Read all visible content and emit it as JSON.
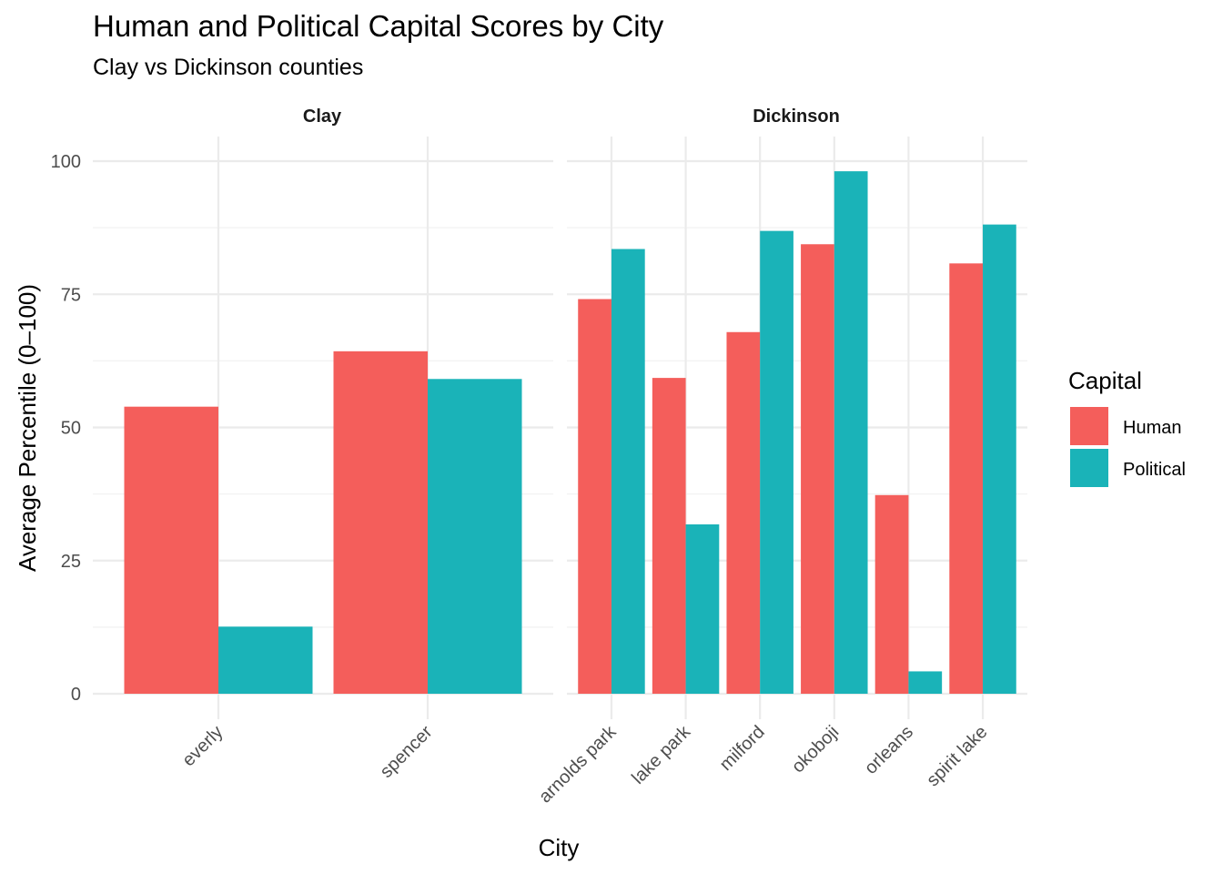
{
  "chart_data": {
    "type": "bar",
    "title": "Human and Political Capital Scores by City",
    "subtitle": "Clay vs Dickinson counties",
    "xlabel": "City",
    "ylabel": "Average Percentile (0–100)",
    "ylim": [
      0,
      100
    ],
    "yticks": [
      "0",
      "25",
      "50",
      "75",
      "100"
    ],
    "grid": true,
    "legend": {
      "title": "Capital",
      "position": "right",
      "entries": [
        {
          "name": "Human",
          "color": "#F45E5B"
        },
        {
          "name": "Political",
          "color": "#1AB3B8"
        }
      ]
    },
    "panels": [
      {
        "name": "Clay",
        "categories": [
          "everly",
          "spencer"
        ],
        "series": [
          {
            "name": "Human",
            "values": [
              53.9,
              64.3
            ]
          },
          {
            "name": "Political",
            "values": [
              12.6,
              59.1
            ]
          }
        ]
      },
      {
        "name": "Dickinson",
        "categories": [
          "arnolds park",
          "lake park",
          "milford",
          "okoboji",
          "orleans",
          "spirit lake"
        ],
        "series": [
          {
            "name": "Human",
            "values": [
              74.1,
              59.3,
              67.9,
              84.4,
              37.3,
              80.8
            ]
          },
          {
            "name": "Political",
            "values": [
              83.5,
              31.8,
              86.9,
              98.1,
              4.2,
              88.1
            ]
          }
        ]
      }
    ]
  }
}
